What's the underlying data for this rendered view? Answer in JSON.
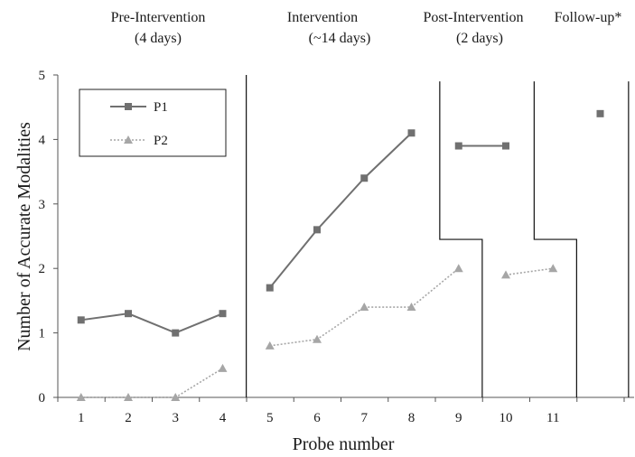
{
  "chart_data": {
    "type": "line",
    "title": "",
    "xlabel": "Probe number",
    "ylabel": "Number of Accurate Modalities",
    "ylim": [
      0,
      5
    ],
    "yticks": [
      0,
      1,
      2,
      3,
      4,
      5
    ],
    "xticks": [
      1,
      2,
      3,
      4,
      5,
      6,
      7,
      8,
      9,
      10,
      11
    ],
    "grid": false,
    "legend_position": "top-left",
    "phases": [
      {
        "line1": "Pre-Intervention",
        "line2": "(4 days)"
      },
      {
        "line1": "Intervention",
        "line2": "(~14 days)"
      },
      {
        "line1": "Post-Intervention",
        "line2": "(2 days)"
      },
      {
        "line1": "Follow-up*",
        "line2": ""
      }
    ],
    "series": [
      {
        "name": "P1",
        "marker": "square",
        "line_style": "solid",
        "color": "#707070",
        "segments": [
          [
            {
              "x": 1,
              "y": 1.2
            },
            {
              "x": 2,
              "y": 1.3
            },
            {
              "x": 3,
              "y": 1.0
            },
            {
              "x": 4,
              "y": 1.3
            }
          ],
          [
            {
              "x": 5,
              "y": 1.7
            },
            {
              "x": 6,
              "y": 2.6
            },
            {
              "x": 7,
              "y": 3.4
            },
            {
              "x": 8,
              "y": 4.1
            }
          ],
          [
            {
              "x": 9,
              "y": 3.9
            },
            {
              "x": 10,
              "y": 3.9
            }
          ],
          [
            {
              "x": 12,
              "y": 4.4
            }
          ]
        ]
      },
      {
        "name": "P2",
        "marker": "triangle",
        "line_style": "dotted",
        "color": "#a6a6a6",
        "segments": [
          [
            {
              "x": 1,
              "y": 0.0
            },
            {
              "x": 2,
              "y": 0.0
            },
            {
              "x": 3,
              "y": 0.0
            },
            {
              "x": 4,
              "y": 0.45
            }
          ],
          [
            {
              "x": 5,
              "y": 0.8
            },
            {
              "x": 6,
              "y": 0.9
            },
            {
              "x": 7,
              "y": 1.4
            },
            {
              "x": 8,
              "y": 1.4
            },
            {
              "x": 9,
              "y": 2.0
            }
          ],
          [
            {
              "x": 10,
              "y": 1.9
            },
            {
              "x": 11,
              "y": 2.0
            }
          ]
        ]
      }
    ],
    "phase_change_lines": [
      {
        "x_points": [
          [
            4.5,
            5
          ],
          [
            4.5,
            0
          ]
        ]
      },
      {
        "x_points": [
          [
            8.6,
            4.9
          ],
          [
            8.6,
            2.45
          ],
          [
            9.5,
            2.45
          ],
          [
            9.5,
            0
          ]
        ]
      },
      {
        "x_points": [
          [
            10.6,
            4.9
          ],
          [
            10.6,
            2.45
          ],
          [
            11.5,
            2.45
          ],
          [
            11.5,
            0
          ]
        ]
      },
      {
        "x_points": [
          [
            12.6,
            4.9
          ],
          [
            12.6,
            0
          ]
        ]
      }
    ]
  }
}
